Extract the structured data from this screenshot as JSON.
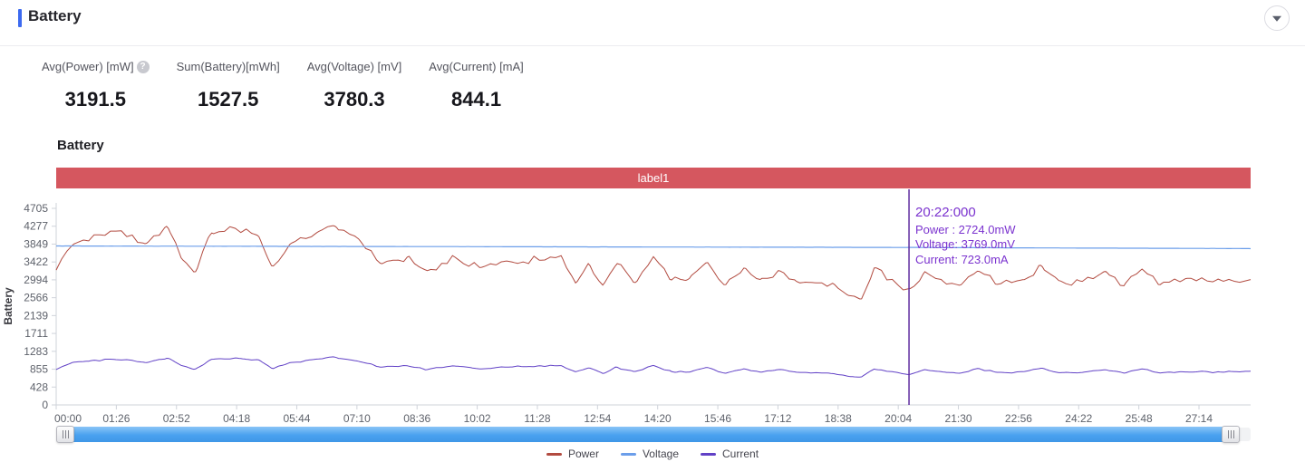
{
  "header": {
    "title": "Battery"
  },
  "icons": {
    "collapse": "caret-down",
    "help": "question-mark",
    "scrollbar_handles": "grip-lines"
  },
  "help_glyph": "?",
  "stats": {
    "items": [
      {
        "label": "Avg(Power) [mW]",
        "value": "3191.5",
        "has_help_icon": true
      },
      {
        "label": "Sum(Battery)[mWh]",
        "value": "1527.5"
      },
      {
        "label": "Avg(Voltage) [mV]",
        "value": "3780.3"
      },
      {
        "label": "Avg(Current) [mA]",
        "value": "844.1"
      }
    ]
  },
  "chart_data": {
    "type": "line",
    "title": "Battery",
    "ylabel": "Battery",
    "xlabel": "",
    "ylim": [
      0,
      4705
    ],
    "grid": false,
    "legend_position": "bottom",
    "y_ticks": [
      4705,
      4277,
      3849,
      3422,
      2994,
      2566,
      2139,
      1711,
      1283,
      855,
      428,
      0
    ],
    "x_ticks": [
      "00:00",
      "01:26",
      "02:52",
      "04:18",
      "05:44",
      "07:10",
      "08:36",
      "10:02",
      "11:28",
      "12:54",
      "14:20",
      "15:46",
      "17:12",
      "18:38",
      "20:04",
      "21:30",
      "22:56",
      "24:22",
      "25:48",
      "27:14"
    ],
    "x_tick_interval": "86s",
    "band": {
      "label": "label1",
      "color": "#d5575f"
    },
    "series": [
      {
        "name": "Power",
        "unit": "mW",
        "color": "#b24b40",
        "noise_amp": 95,
        "seed": 7,
        "anchors": [
          [
            0,
            3250
          ],
          [
            0.014,
            3840
          ],
          [
            0.03,
            4010
          ],
          [
            0.05,
            4150
          ],
          [
            0.075,
            3850
          ],
          [
            0.093,
            4250
          ],
          [
            0.105,
            3500
          ],
          [
            0.116,
            3200
          ],
          [
            0.13,
            4100
          ],
          [
            0.15,
            4250
          ],
          [
            0.17,
            4000
          ],
          [
            0.181,
            3300
          ],
          [
            0.196,
            3840
          ],
          [
            0.22,
            4150
          ],
          [
            0.234,
            4300
          ],
          [
            0.253,
            3950
          ],
          [
            0.272,
            3400
          ],
          [
            0.294,
            3520
          ],
          [
            0.31,
            3200
          ],
          [
            0.332,
            3520
          ],
          [
            0.355,
            3300
          ],
          [
            0.378,
            3420
          ],
          [
            0.4,
            3480
          ],
          [
            0.423,
            3560
          ],
          [
            0.435,
            2950
          ],
          [
            0.446,
            3350
          ],
          [
            0.458,
            2850
          ],
          [
            0.469,
            3400
          ],
          [
            0.484,
            2950
          ],
          [
            0.5,
            3550
          ],
          [
            0.515,
            3000
          ],
          [
            0.53,
            2980
          ],
          [
            0.545,
            3420
          ],
          [
            0.56,
            2840
          ],
          [
            0.576,
            3300
          ],
          [
            0.59,
            2950
          ],
          [
            0.605,
            3190
          ],
          [
            0.62,
            2950
          ],
          [
            0.637,
            2900
          ],
          [
            0.651,
            2860
          ],
          [
            0.663,
            2600
          ],
          [
            0.674,
            2540
          ],
          [
            0.685,
            3290
          ],
          [
            0.7,
            2970
          ],
          [
            0.714,
            2724
          ],
          [
            0.727,
            3190
          ],
          [
            0.742,
            2970
          ],
          [
            0.757,
            2860
          ],
          [
            0.772,
            3290
          ],
          [
            0.787,
            2930
          ],
          [
            0.81,
            2970
          ],
          [
            0.825,
            3320
          ],
          [
            0.84,
            2880
          ],
          [
            0.856,
            2930
          ],
          [
            0.879,
            3190
          ],
          [
            0.894,
            2860
          ],
          [
            0.909,
            3290
          ],
          [
            0.924,
            2930
          ],
          [
            0.947,
            3010
          ],
          [
            0.97,
            2970
          ],
          [
            1,
            3010
          ]
        ]
      },
      {
        "name": "Voltage",
        "unit": "mV",
        "color": "#6b9eea",
        "noise_amp": 2,
        "seed": 11,
        "anchors": [
          [
            0,
            3805
          ],
          [
            0.1,
            3800
          ],
          [
            0.2,
            3795
          ],
          [
            0.35,
            3788
          ],
          [
            0.5,
            3780
          ],
          [
            0.6,
            3775
          ],
          [
            0.714,
            3769
          ],
          [
            0.85,
            3755
          ],
          [
            1,
            3742
          ]
        ]
      },
      {
        "name": "Current",
        "unit": "mA",
        "color": "#6141c6",
        "noise_amp": 24,
        "seed": 13,
        "anchors": [
          [
            0,
            860
          ],
          [
            0.014,
            1016
          ],
          [
            0.03,
            1061
          ],
          [
            0.05,
            1098
          ],
          [
            0.075,
            1018
          ],
          [
            0.093,
            1124
          ],
          [
            0.105,
            926
          ],
          [
            0.116,
            847
          ],
          [
            0.13,
            1085
          ],
          [
            0.15,
            1124
          ],
          [
            0.17,
            1058
          ],
          [
            0.181,
            873
          ],
          [
            0.196,
            1016
          ],
          [
            0.22,
            1098
          ],
          [
            0.234,
            1138
          ],
          [
            0.253,
            1045
          ],
          [
            0.272,
            899
          ],
          [
            0.294,
            931
          ],
          [
            0.31,
            847
          ],
          [
            0.332,
            931
          ],
          [
            0.355,
            873
          ],
          [
            0.378,
            905
          ],
          [
            0.4,
            921
          ],
          [
            0.423,
            942
          ],
          [
            0.435,
            780
          ],
          [
            0.446,
            886
          ],
          [
            0.458,
            754
          ],
          [
            0.469,
            899
          ],
          [
            0.484,
            780
          ],
          [
            0.5,
            939
          ],
          [
            0.515,
            794
          ],
          [
            0.53,
            788
          ],
          [
            0.545,
            905
          ],
          [
            0.56,
            751
          ],
          [
            0.576,
            873
          ],
          [
            0.59,
            780
          ],
          [
            0.605,
            844
          ],
          [
            0.62,
            780
          ],
          [
            0.637,
            767
          ],
          [
            0.651,
            757
          ],
          [
            0.663,
            688
          ],
          [
            0.674,
            672
          ],
          [
            0.685,
            870
          ],
          [
            0.7,
            786
          ],
          [
            0.714,
            723
          ],
          [
            0.727,
            844
          ],
          [
            0.742,
            786
          ],
          [
            0.757,
            757
          ],
          [
            0.772,
            870
          ],
          [
            0.787,
            775
          ],
          [
            0.81,
            786
          ],
          [
            0.825,
            878
          ],
          [
            0.84,
            762
          ],
          [
            0.856,
            775
          ],
          [
            0.879,
            844
          ],
          [
            0.894,
            757
          ],
          [
            0.909,
            870
          ],
          [
            0.924,
            775
          ],
          [
            0.947,
            796
          ],
          [
            0.97,
            786
          ],
          [
            1,
            796
          ]
        ]
      }
    ],
    "cursor": {
      "x_fraction": 0.714,
      "time_label": "20:22:000",
      "readouts": [
        "Power : 2724.0mW",
        "Voltage: 3769.0mV",
        "Current: 723.0mA"
      ],
      "line_color": "#5f2da0",
      "text_color": "#7b33cf"
    }
  }
}
